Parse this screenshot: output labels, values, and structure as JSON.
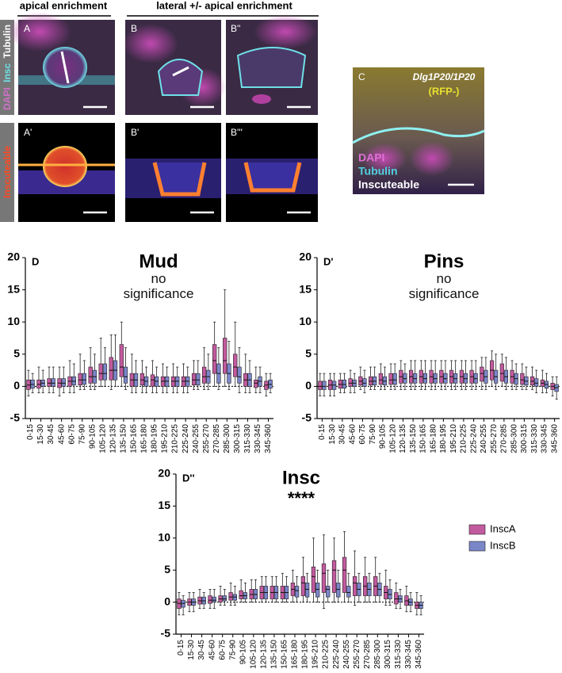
{
  "figure": {
    "header_left": "apical enrichment",
    "header_right": "lateral +/- apical enrichment",
    "side_top": [
      "DAPI",
      "Insc",
      "Tubulin"
    ],
    "side_bottom": "Inscuteable",
    "panels": [
      "A",
      "B",
      "B''",
      "A'",
      "B'",
      "B'''"
    ],
    "panel_c": {
      "label": "C",
      "genotype": "Dlg1P20/1P20",
      "note": "(RFP-)",
      "stains": [
        "DAPI",
        "Tubulin",
        "Inscuteable"
      ]
    }
  },
  "chart_data": [
    {
      "type": "box",
      "panel": "D",
      "title": "Mud",
      "subtitle": "no significance",
      "categories": [
        "0-15",
        "15-30",
        "30-45",
        "45-60",
        "60-75",
        "75-90",
        "90-105",
        "105-120",
        "120-135",
        "135-150",
        "150-165",
        "165-180",
        "180-195",
        "195-210",
        "210-225",
        "225-240",
        "240-255",
        "255-270",
        "270-285",
        "285-300",
        "300-315",
        "315-330",
        "330-345",
        "345-360"
      ],
      "ylim": [
        -5,
        20
      ],
      "yticks": [
        -5,
        0,
        5,
        10,
        15,
        20
      ],
      "hline": 0,
      "series": [
        {
          "color": "#c25a9e",
          "min": [
            -1.5,
            -1,
            -1,
            -1.5,
            -1,
            -0.5,
            -0.5,
            0,
            -0.5,
            0,
            -1,
            -1,
            -1,
            -1,
            -1,
            -1,
            -0.5,
            -0.5,
            0,
            0,
            0,
            -1,
            -1,
            -1.5
          ],
          "q1": [
            -0.5,
            -0.3,
            0,
            -0.2,
            0,
            0.2,
            0.5,
            1,
            1,
            1.5,
            0,
            0.2,
            0,
            0,
            0,
            0,
            0.2,
            0.5,
            2,
            2,
            1.5,
            0,
            -0.2,
            -0.5
          ],
          "median": [
            0.2,
            0.3,
            0.5,
            0.5,
            0.8,
            1,
            1.5,
            2,
            2.5,
            3,
            1,
            1,
            1,
            0.8,
            0.8,
            0.8,
            1,
            1.5,
            4,
            4,
            3,
            1,
            0.5,
            0.2
          ],
          "q3": [
            1,
            1,
            1.2,
            1.2,
            1.5,
            2,
            3,
            3.5,
            4.5,
            6.5,
            2,
            2,
            1.8,
            1.5,
            1.5,
            1.5,
            2,
            3,
            6.5,
            7.5,
            5,
            2,
            1,
            0.8
          ],
          "max": [
            2.5,
            3,
            3,
            3,
            4,
            5,
            6,
            7.5,
            8,
            10,
            5,
            4,
            4,
            3.5,
            3.5,
            3.5,
            4,
            6,
            10,
            15,
            10,
            5,
            3,
            2
          ]
        },
        {
          "color": "#7b86c9",
          "min": [
            -1,
            -1,
            -1,
            -1,
            -1,
            -0.5,
            -0.5,
            0,
            0,
            -0.5,
            -1,
            -1,
            -1,
            -1,
            -1,
            -1,
            -0.5,
            -0.5,
            -0.5,
            -0.5,
            -1,
            -1,
            -1,
            -1
          ],
          "q1": [
            -0.3,
            0,
            0,
            0,
            0.2,
            0.3,
            0.5,
            1,
            1,
            0.5,
            0,
            0,
            0,
            0,
            0,
            0,
            0.2,
            0.5,
            0.5,
            0.5,
            0.5,
            0,
            0,
            -0.3
          ],
          "median": [
            0.3,
            0.5,
            0.5,
            0.5,
            0.8,
            1,
            1.5,
            2,
            2.5,
            1.5,
            1,
            0.8,
            0.8,
            0.8,
            0.8,
            0.8,
            1,
            1.5,
            2,
            2,
            1.5,
            1,
            0.8,
            0.3
          ],
          "q3": [
            1,
            1,
            1.2,
            1.2,
            1.5,
            2,
            2.5,
            3.5,
            4,
            3,
            2,
            1.5,
            1.5,
            1.5,
            1.5,
            1.5,
            2,
            2.5,
            3.5,
            3.5,
            3,
            2,
            1.5,
            1
          ],
          "max": [
            2,
            2.5,
            3,
            3,
            3.5,
            4,
            5,
            6,
            8,
            6,
            4,
            3,
            3,
            3,
            3,
            3,
            4,
            5,
            6,
            7,
            6,
            4,
            3,
            2
          ]
        }
      ]
    },
    {
      "type": "box",
      "panel": "D'",
      "title": "Pins",
      "subtitle": "no significance",
      "categories": [
        "0-15",
        "15-30",
        "30-45",
        "45-60",
        "60-75",
        "75-90",
        "90-105",
        "105-120",
        "120-135",
        "135-150",
        "150-165",
        "165-180",
        "180-195",
        "195-210",
        "210-225",
        "225-240",
        "240-255",
        "255-270",
        "270-285",
        "285-300",
        "300-315",
        "315-330",
        "330-345",
        "345-360"
      ],
      "ylim": [
        -5,
        20
      ],
      "yticks": [
        -5,
        0,
        5,
        10,
        15,
        20
      ],
      "hline": 0,
      "series": [
        {
          "color": "#c25a9e",
          "min": [
            -1.5,
            -1.5,
            -1,
            -1,
            -0.5,
            -0.5,
            -0.5,
            -0.5,
            -0.5,
            -0.5,
            -0.5,
            -0.5,
            -0.5,
            -0.5,
            -0.5,
            -0.5,
            -0.5,
            0,
            0,
            -0.5,
            -0.5,
            -0.5,
            -1,
            -1.5
          ],
          "q1": [
            -0.5,
            -0.5,
            -0.3,
            0,
            0.2,
            0.2,
            0.3,
            0.3,
            0.5,
            0.5,
            0.5,
            0.5,
            0.5,
            0.5,
            0.5,
            0.5,
            0.8,
            1,
            0.8,
            0.5,
            0.3,
            0.2,
            0,
            -0.5
          ],
          "median": [
            0,
            0.2,
            0.3,
            0.5,
            0.8,
            0.8,
            1,
            1,
            1.5,
            1.5,
            1.5,
            1.5,
            1.5,
            1.5,
            1.5,
            1.5,
            2,
            2.5,
            2,
            1.5,
            1,
            0.8,
            0.5,
            0
          ],
          "q3": [
            0.8,
            1,
            1,
            1.2,
            1.5,
            1.5,
            2,
            2,
            2.5,
            2.5,
            2.5,
            2.5,
            2.5,
            2.5,
            2.5,
            2.5,
            3,
            4,
            3.5,
            2.5,
            2,
            1.5,
            1,
            0.5
          ],
          "max": [
            2,
            2,
            2,
            2.5,
            3,
            3,
            3.5,
            3.5,
            4,
            4,
            4,
            4,
            4,
            4,
            4,
            4,
            4.5,
            5.5,
            5,
            4,
            3.5,
            3,
            2.5,
            1.5
          ]
        },
        {
          "color": "#7b86c9",
          "min": [
            -1.5,
            -1.5,
            -1,
            -1,
            -1,
            -0.5,
            -0.5,
            -0.5,
            -0.5,
            -0.5,
            -0.5,
            -0.5,
            -0.5,
            -0.5,
            -0.5,
            -0.5,
            -0.5,
            -0.5,
            -0.5,
            -0.5,
            -0.5,
            -1,
            -1,
            -2
          ],
          "q1": [
            -0.5,
            -0.5,
            -0.3,
            0,
            0,
            0.2,
            0.2,
            0.3,
            0.5,
            0.5,
            0.5,
            0.5,
            0.5,
            0.5,
            0.5,
            0.5,
            0.5,
            0.5,
            0.5,
            0.3,
            0.2,
            0,
            -0.3,
            -0.8
          ],
          "median": [
            0,
            0.2,
            0.3,
            0.5,
            0.5,
            0.8,
            0.8,
            1,
            1.2,
            1.2,
            1.2,
            1.2,
            1.2,
            1.2,
            1.2,
            1.2,
            1.5,
            1.5,
            1.5,
            1.2,
            0.8,
            0.5,
            0.3,
            -0.2
          ],
          "q3": [
            0.8,
            0.8,
            1,
            1,
            1.2,
            1.5,
            1.5,
            2,
            2,
            2,
            2,
            2,
            2,
            2,
            2,
            2,
            2.5,
            2.5,
            2.5,
            2,
            1.5,
            1.2,
            0.8,
            0.3
          ],
          "max": [
            2,
            2,
            2,
            2,
            2.5,
            3,
            3,
            3.5,
            3.5,
            4,
            4,
            4,
            4,
            4,
            4,
            4,
            4.5,
            5,
            4.5,
            3.5,
            3,
            2.5,
            2,
            1.5
          ]
        }
      ]
    },
    {
      "type": "box",
      "panel": "D''",
      "title": "Insc",
      "annotation": "****",
      "legend": "right",
      "categories": [
        "0-15",
        "15-30",
        "30-45",
        "45-60",
        "60-75",
        "75-90",
        "90-105",
        "105-120",
        "120-135",
        "135-150",
        "150-165",
        "165-180",
        "180-195",
        "195-210",
        "210-225",
        "225-240",
        "240-255",
        "255-270",
        "270-285",
        "285-300",
        "300-315",
        "315-330",
        "330-345",
        "345-360"
      ],
      "ylim": [
        -5,
        20
      ],
      "yticks": [
        -5,
        0,
        5,
        10,
        15,
        20
      ],
      "hline": 0,
      "series": [
        {
          "name": "InscA",
          "color": "#c25a9e",
          "min": [
            -2,
            -1.5,
            -1,
            -1,
            -0.5,
            -0.5,
            0,
            0,
            0,
            0,
            0,
            0,
            0,
            0,
            -1,
            0,
            0,
            -0.5,
            0,
            0,
            -0.5,
            -1,
            -1.5,
            -2
          ],
          "q1": [
            -1,
            -0.5,
            -0.3,
            -0.2,
            0,
            0.3,
            0.5,
            0.5,
            0.5,
            0.5,
            0.5,
            1,
            1,
            1.5,
            1.5,
            1.5,
            1.5,
            1,
            1,
            1,
            0.5,
            -0.3,
            -0.5,
            -1
          ],
          "median": [
            -0.2,
            0,
            0.2,
            0.3,
            0.5,
            0.8,
            1,
            1.2,
            1.5,
            1.5,
            1.5,
            2,
            3,
            4,
            4.5,
            5,
            5,
            3,
            2.5,
            2.5,
            1.5,
            0.5,
            0.2,
            -0.5
          ],
          "q3": [
            0.5,
            0.5,
            0.8,
            1,
            1,
            1.5,
            1.8,
            2,
            2.5,
            2.5,
            2.5,
            3,
            4,
            5.5,
            6,
            6.5,
            7,
            4,
            4,
            4,
            2.5,
            1.5,
            1,
            0
          ],
          "max": [
            1.5,
            1.5,
            2,
            2,
            2.5,
            3,
            3.5,
            3.5,
            4,
            4,
            4.5,
            5,
            7,
            10,
            10.5,
            10,
            11,
            8,
            7,
            7,
            5,
            3,
            2.5,
            1.5
          ]
        },
        {
          "name": "InscB",
          "color": "#7b86c9",
          "min": [
            -2,
            -1.5,
            -1,
            -1,
            -0.5,
            -0.5,
            0,
            0,
            0,
            0,
            0,
            0,
            0,
            0,
            0,
            0,
            0,
            0,
            0,
            0,
            -0.5,
            -1,
            -1.5,
            -2
          ],
          "q1": [
            -0.8,
            -0.5,
            -0.3,
            0,
            0.2,
            0.3,
            0.5,
            0.5,
            0.5,
            0.5,
            0.5,
            0.8,
            0.8,
            0.8,
            0.8,
            0.8,
            0.8,
            1,
            1,
            1,
            0.5,
            0,
            -0.5,
            -1
          ],
          "median": [
            -0.2,
            0,
            0.2,
            0.3,
            0.5,
            0.8,
            1,
            1.2,
            1.5,
            1.5,
            1.5,
            1.8,
            2,
            2,
            2,
            2,
            1.5,
            2,
            2,
            2,
            1.2,
            0.5,
            0,
            -0.5
          ],
          "q3": [
            0.3,
            0.5,
            0.8,
            0.8,
            1,
            1.2,
            1.5,
            2,
            2.5,
            2.5,
            2.5,
            2.5,
            3,
            3,
            2.5,
            3,
            2.5,
            3,
            3,
            3,
            2,
            1,
            0.5,
            0
          ],
          "max": [
            1,
            1.5,
            1.5,
            2,
            2,
            2.5,
            3,
            3.5,
            4,
            4,
            4,
            4,
            4.5,
            5,
            5,
            5,
            4.5,
            4.5,
            4.5,
            4.5,
            3.5,
            2,
            1.5,
            1
          ]
        }
      ]
    }
  ]
}
